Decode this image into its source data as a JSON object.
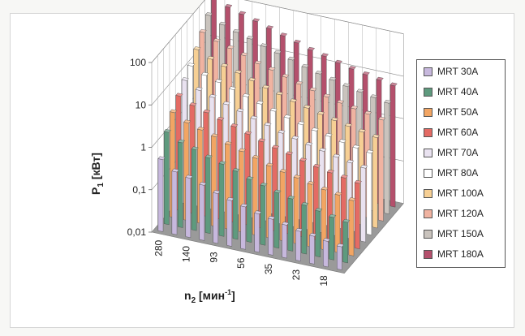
{
  "chart_data": {
    "type": "bar",
    "variant": "3d-clustered",
    "y_scale": "log",
    "ylabel": "P",
    "ylabel_sub": "1",
    "ylabel_unit": " [кВт]",
    "xlabel": "n",
    "xlabel_sub": "2",
    "xlabel_unit": " [мин",
    "xlabel_sup": "-1",
    "xlabel_end": "]",
    "ylim": [
      0.01,
      100
    ],
    "y_ticks": [
      "0,01",
      "0,1",
      "1",
      "10",
      "100"
    ],
    "x_tick_labels": [
      "280",
      "140",
      "93",
      "56",
      "35",
      "23",
      "18"
    ],
    "legend_position": "right",
    "grid": true,
    "series": [
      {
        "name": "MRT 30A",
        "color": "#c7b8dd",
        "values": [
          0.5,
          0.3,
          0.25,
          0.2,
          0.15,
          0.12,
          0.1,
          0.08,
          0.07,
          0.06,
          0.05,
          0.045,
          0.04,
          0.035
        ]
      },
      {
        "name": "MRT 40A",
        "color": "#5e9a7e",
        "values": [
          1.5,
          1.0,
          0.8,
          0.6,
          0.5,
          0.4,
          0.3,
          0.25,
          0.2,
          0.17,
          0.14,
          0.12,
          0.1,
          0.09
        ]
      },
      {
        "name": "MRT 50A",
        "color": "#f2a563",
        "values": [
          3,
          2,
          1.6,
          1.3,
          1.0,
          0.8,
          0.65,
          0.5,
          0.42,
          0.36,
          0.3,
          0.26,
          0.23,
          0.2
        ]
      },
      {
        "name": "MRT 60A",
        "color": "#e46b64",
        "values": [
          5,
          3.5,
          2.8,
          2.2,
          1.8,
          1.4,
          1.1,
          0.9,
          0.75,
          0.62,
          0.52,
          0.45,
          0.4,
          0.35
        ]
      },
      {
        "name": "MRT 70A",
        "color": "#e9e2f0",
        "values": [
          8,
          5.5,
          4.4,
          3.5,
          2.8,
          2.2,
          1.8,
          1.4,
          1.2,
          1.0,
          0.85,
          0.72,
          0.62,
          0.55
        ]
      },
      {
        "name": "MRT 80A",
        "color": "#ffffff",
        "values": [
          12,
          8.5,
          6.8,
          5.4,
          4.3,
          3.4,
          2.7,
          2.2,
          1.8,
          1.5,
          1.3,
          1.1,
          0.95,
          0.85
        ]
      },
      {
        "name": "MRT 100A",
        "color": "#f6cf94",
        "values": [
          20,
          14,
          11,
          9,
          7,
          5.5,
          4.5,
          3.6,
          3.0,
          2.5,
          2.1,
          1.8,
          1.55,
          1.35
        ]
      },
      {
        "name": "MRT 120A",
        "color": "#f0b3a1",
        "values": [
          35,
          25,
          20,
          16,
          12,
          10,
          8,
          6.4,
          5.3,
          4.4,
          3.7,
          3.2,
          2.8,
          2.4
        ]
      },
      {
        "name": "MRT 150A",
        "color": "#c9c3bd",
        "values": [
          60,
          42,
          33,
          27,
          21,
          17,
          14,
          11,
          9,
          7.5,
          6.3,
          5.4,
          4.7,
          4.1
        ]
      },
      {
        "name": "MRT 180A",
        "color": "#b4506c",
        "values": [
          110,
          75,
          60,
          48,
          38,
          30,
          24,
          19,
          16,
          13,
          11,
          9.5,
          8.3,
          7.2
        ]
      }
    ]
  }
}
